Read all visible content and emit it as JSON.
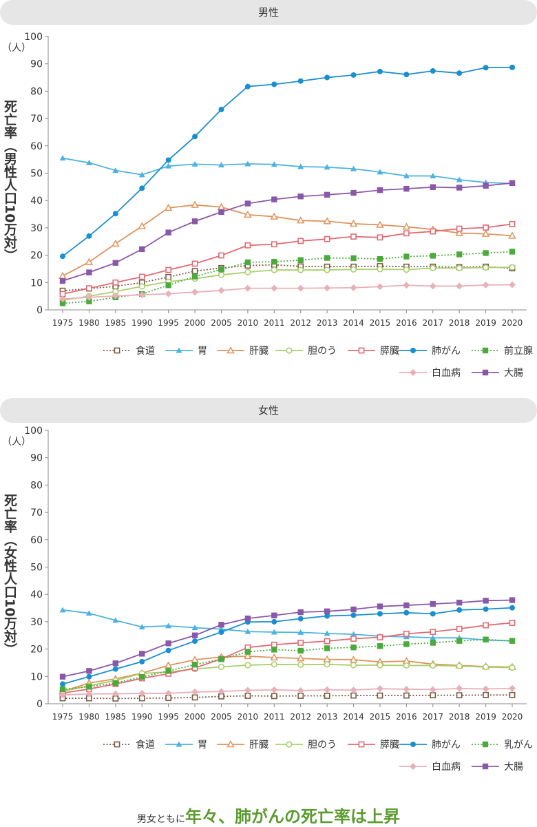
{
  "footer": {
    "prefix": "男女ともに",
    "headline": "年々、肺がんの死亡率は上昇"
  },
  "chart_data": [
    {
      "type": "line",
      "title": "男性",
      "ylabel": "死亡率（男性人口10万対）",
      "yunit": "（人）",
      "ylim": [
        0,
        100
      ],
      "yticks": [
        0,
        10,
        20,
        30,
        40,
        50,
        60,
        70,
        80,
        90,
        100
      ],
      "x": [
        "1975",
        "1980",
        "1985",
        "1990",
        "1995",
        "2000",
        "2005",
        "2010",
        "2011",
        "2012",
        "2013",
        "2014",
        "2015",
        "2016",
        "2017",
        "2018",
        "2019",
        "2020"
      ],
      "series": [
        {
          "name": "食道",
          "color": "#7a5a45",
          "marker": "square-open",
          "dash": true,
          "values": [
            7,
            7.8,
            8.6,
            10,
            12,
            14.2,
            15.3,
            16.2,
            16.5,
            15.9,
            15.8,
            15.8,
            16.0,
            15.8,
            15.8,
            15.6,
            15.8,
            15.2
          ]
        },
        {
          "name": "胃",
          "color": "#4db2e0",
          "marker": "triangle",
          "dash": false,
          "values": [
            55.5,
            53.8,
            51,
            49.4,
            52.6,
            53.3,
            53,
            53.4,
            53.2,
            52.4,
            52.2,
            51.6,
            50.4,
            49,
            49,
            47.6,
            46.6,
            46.2
          ]
        },
        {
          "name": "肝臓",
          "color": "#e0925a",
          "marker": "triangle-open",
          "dash": false,
          "values": [
            12.4,
            17.5,
            24.2,
            30.6,
            37.3,
            38.4,
            37.6,
            34.8,
            34.1,
            32.7,
            32.4,
            31.5,
            31.1,
            30.4,
            29.4,
            28.1,
            27.8,
            27.1
          ]
        },
        {
          "name": "胆のう",
          "color": "#a8cf6a",
          "marker": "circle-open",
          "dash": false,
          "values": [
            3.5,
            5,
            6.7,
            8.6,
            10.3,
            11.4,
            12.8,
            13.8,
            14.6,
            14.6,
            14.6,
            14.8,
            14.9,
            14.7,
            15.3,
            15.3,
            15.5,
            15.6
          ]
        },
        {
          "name": "膵臓",
          "color": "#e06a74",
          "marker": "square-open",
          "dash": false,
          "values": [
            5.8,
            7.9,
            10,
            12.1,
            14.6,
            16.9,
            19.9,
            23.6,
            24,
            25.2,
            25.9,
            26.8,
            26.5,
            28,
            28.7,
            29.7,
            30.1,
            31.4
          ]
        },
        {
          "name": "肺がん",
          "color": "#1a8fcf",
          "marker": "circle",
          "dash": false,
          "values": [
            19.6,
            27,
            35.2,
            44.5,
            54.8,
            63.4,
            73.3,
            81.7,
            82.5,
            83.7,
            85,
            85.9,
            87.2,
            86.1,
            87.4,
            86.6,
            88.6,
            88.7
          ]
        },
        {
          "name": "前立腺",
          "color": "#4caa3c",
          "marker": "square",
          "dash": true,
          "values": [
            2.4,
            3.1,
            4.6,
            5.8,
            9,
            12.2,
            14.8,
            17.4,
            17.6,
            18.2,
            19,
            18.9,
            18.6,
            19.5,
            19.8,
            20.3,
            20.8,
            21.3
          ]
        },
        {
          "name": "白血病",
          "color": "#e8b0b8",
          "marker": "diamond",
          "dash": false,
          "values": [
            4,
            4.6,
            5.1,
            5.5,
            5.9,
            6.5,
            7.1,
            7.9,
            7.9,
            7.9,
            8,
            8.1,
            8.5,
            9,
            8.7,
            8.7,
            9.1,
            9.2
          ]
        },
        {
          "name": "大腸",
          "color": "#8a58a8",
          "marker": "square",
          "dash": false,
          "values": [
            10.6,
            13.7,
            17.2,
            22.2,
            28.3,
            32.4,
            35.8,
            38.9,
            40.4,
            41.5,
            42.1,
            42.8,
            43.8,
            44.3,
            44.9,
            44.7,
            45.4,
            46.4
          ]
        }
      ]
    },
    {
      "type": "line",
      "title": "女性",
      "ylabel": "死亡率（女性人口10万対）",
      "yunit": "（人）",
      "ylim": [
        0,
        100
      ],
      "yticks": [
        0,
        10,
        20,
        30,
        40,
        50,
        60,
        70,
        80,
        90,
        100
      ],
      "x": [
        "1975",
        "1980",
        "1985",
        "1990",
        "1995",
        "2000",
        "2005",
        "2010",
        "2011",
        "2012",
        "2013",
        "2014",
        "2015",
        "2016",
        "2017",
        "2018",
        "2019",
        "2020"
      ],
      "series": [
        {
          "name": "食道",
          "color": "#7a5a45",
          "marker": "square-open",
          "dash": true,
          "values": [
            2,
            2,
            1.9,
            2,
            2.1,
            2.3,
            2.7,
            2.9,
            2.8,
            2.9,
            2.9,
            3,
            3,
            3,
            3.1,
            3.1,
            3.2,
            3.2
          ]
        },
        {
          "name": "胃",
          "color": "#4db2e0",
          "marker": "triangle",
          "dash": false,
          "values": [
            34.3,
            33.1,
            30.5,
            28.1,
            28.5,
            27.8,
            27.3,
            26.4,
            26.2,
            26.1,
            25.7,
            25.4,
            24.7,
            24.5,
            24.1,
            24.1,
            23.3,
            23
          ]
        },
        {
          "name": "肝臓",
          "color": "#e0925a",
          "marker": "triangle-open",
          "dash": false,
          "values": [
            4.5,
            7.6,
            9.1,
            11.2,
            14,
            16.1,
            17.1,
            17.4,
            16.9,
            16.6,
            16.2,
            16.1,
            15.3,
            15.6,
            14.5,
            14,
            13.6,
            13.4
          ]
        },
        {
          "name": "胆のう",
          "color": "#a8cf6a",
          "marker": "circle-open",
          "dash": false,
          "values": [
            4.5,
            6.6,
            8.5,
            11.1,
            11.6,
            12.7,
            13.5,
            14.1,
            14.4,
            14.3,
            14.4,
            14.1,
            14.1,
            14,
            14,
            13.8,
            13.4,
            13.2
          ]
        },
        {
          "name": "膵臓",
          "color": "#e06a74",
          "marker": "square-open",
          "dash": false,
          "values": [
            3.9,
            5.4,
            7.2,
            9.3,
            11,
            13.1,
            16.4,
            20.6,
            21.6,
            22.3,
            22.9,
            23.8,
            24.3,
            25.6,
            26.3,
            27.4,
            28.7,
            29.6
          ]
        },
        {
          "name": "肺がん",
          "color": "#1a8fcf",
          "marker": "circle",
          "dash": false,
          "values": [
            7.2,
            9.9,
            12.7,
            15.4,
            19.5,
            22.9,
            26.2,
            29.9,
            30,
            31.1,
            32.1,
            32.4,
            32.9,
            33.3,
            32.9,
            34.3,
            34.6,
            35.1
          ]
        },
        {
          "name": "乳がん",
          "color": "#4caa3c",
          "marker": "square",
          "dash": true,
          "values": [
            5.3,
            6.2,
            7.6,
            9.8,
            12,
            14.3,
            16.3,
            19,
            19.8,
            19.4,
            20.3,
            20.6,
            21.1,
            21.8,
            22.3,
            23,
            23.5,
            23
          ]
        },
        {
          "name": "白血病",
          "color": "#e8b0b8",
          "marker": "diamond",
          "dash": false,
          "values": [
            3.2,
            3.6,
            3.6,
            3.8,
            3.8,
            4.3,
            4.5,
            4.9,
            5.1,
            4.8,
            5.1,
            5,
            5.5,
            5.3,
            5.2,
            5.6,
            5.4,
            5.6
          ]
        },
        {
          "name": "大腸",
          "color": "#8a58a8",
          "marker": "square",
          "dash": false,
          "values": [
            9.9,
            12,
            14.8,
            18.3,
            22.1,
            25,
            28.9,
            31.2,
            32.3,
            33.5,
            33.8,
            34.5,
            35.6,
            36,
            36.5,
            37,
            37.7,
            37.9
          ]
        }
      ]
    }
  ]
}
